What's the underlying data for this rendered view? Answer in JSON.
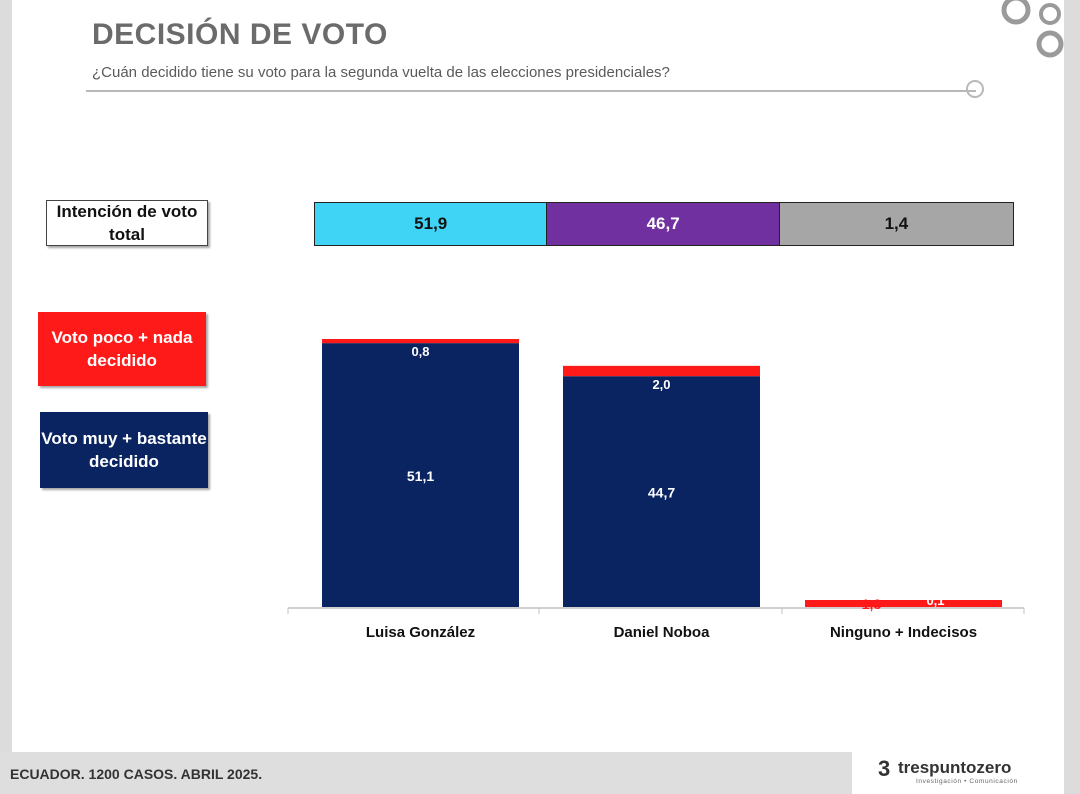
{
  "header": {
    "title": "DECISIÓN DE VOTO",
    "subtitle": "¿Cuán decidido tiene su voto para la segunda vuelta de las elecciones presidenciales?"
  },
  "legend": {
    "total": "Intención de voto total",
    "low": "Voto poco + nada decidido",
    "high": "Voto muy + bastante decidido"
  },
  "colors": {
    "decided": "#0a2462",
    "undecided": "#ff1a1a",
    "total_gonzalez": "#3fd3f5",
    "total_noboa": "#7030a0",
    "total_ninguno": "#a6a6a6"
  },
  "chart_data": {
    "type": "bar",
    "stacked": true,
    "categories": [
      "Luisa González",
      "Daniel Noboa",
      "Ninguno + Indecisos"
    ],
    "series": [
      {
        "name": "Voto muy + bastante decidido",
        "values": [
          51.1,
          44.7,
          1.3
        ],
        "labels": [
          "51,1",
          "44,7",
          "1,3"
        ]
      },
      {
        "name": "Voto poco + nada decidido",
        "values": [
          0.8,
          2.0,
          0.1
        ],
        "labels": [
          "0,8",
          "2,0",
          "0,1"
        ]
      }
    ],
    "totals": {
      "name": "Intención de voto total",
      "values": [
        51.9,
        46.7,
        1.4
      ],
      "labels": [
        "51,9",
        "46,7",
        "1,4"
      ]
    },
    "ylim": [
      0,
      52
    ]
  },
  "footer": {
    "source": "ECUADOR. 1200 CASOS. ABRIL 2025.",
    "brand_mark": "3",
    "brand": "trespuntozero",
    "tagline": "Investigación • Comunicación"
  }
}
